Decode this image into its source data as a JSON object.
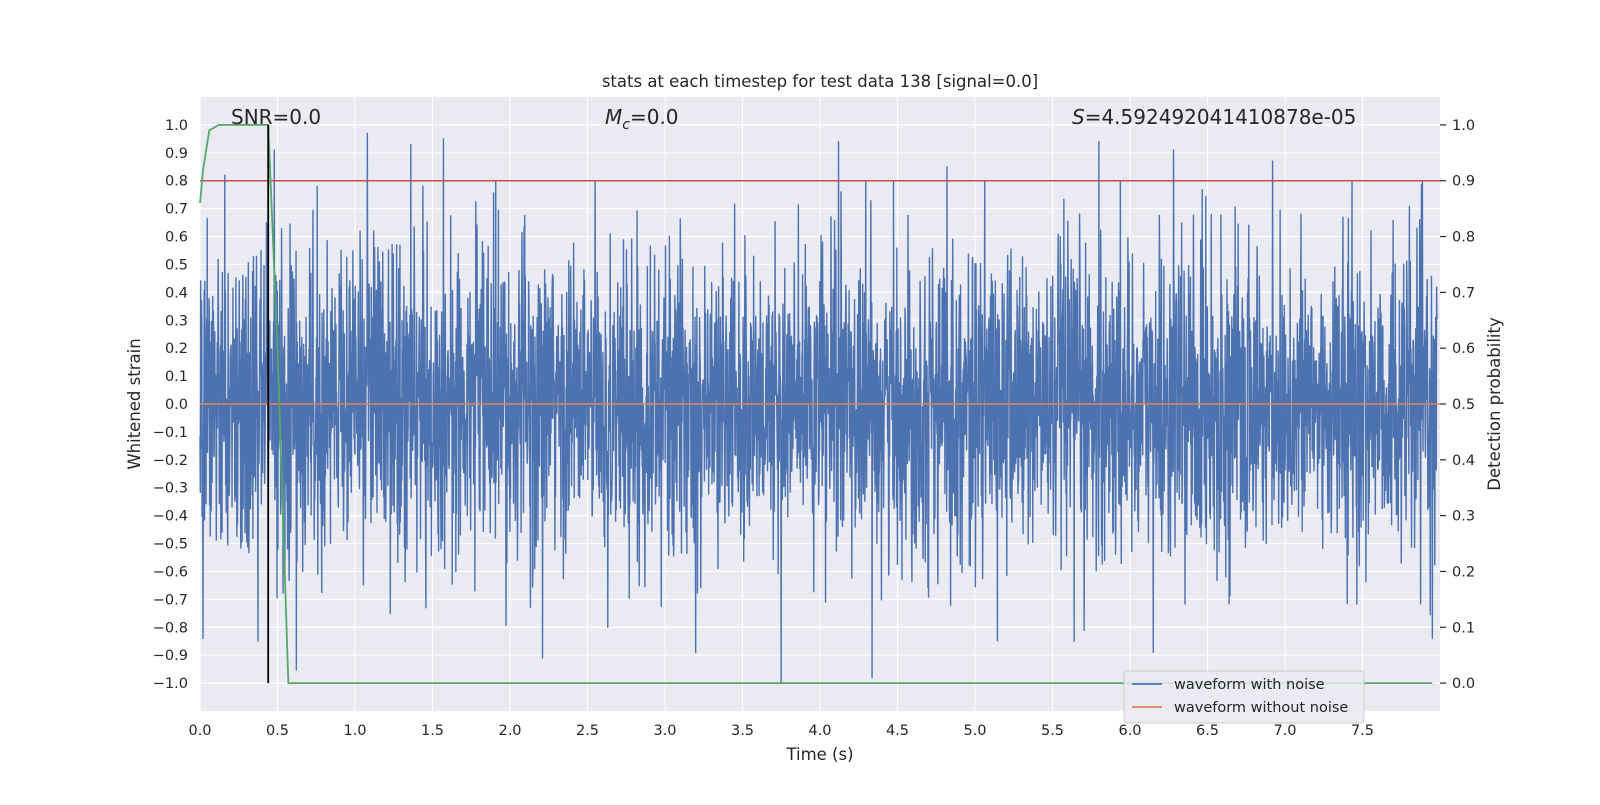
{
  "chart_data": {
    "type": "line",
    "title": "stats at each timestep for test data 138 [signal=0.0]",
    "xlabel": "Time (s)",
    "ylabel_left": "Whitened strain",
    "ylabel_right": "Detection probability",
    "xlim": [
      0.0,
      8.0
    ],
    "ylim_left": [
      -1.1,
      1.1
    ],
    "ylim_right": [
      -0.05,
      1.05
    ],
    "x_ticks": [
      0.0,
      0.5,
      1.0,
      1.5,
      2.0,
      2.5,
      3.0,
      3.5,
      4.0,
      4.5,
      5.0,
      5.5,
      6.0,
      6.5,
      7.0,
      7.5
    ],
    "x_tick_labels": [
      "0.0",
      "0.5",
      "1.0",
      "1.5",
      "2.0",
      "2.5",
      "3.0",
      "3.5",
      "4.0",
      "4.5",
      "5.0",
      "5.5",
      "6.0",
      "6.5",
      "7.0",
      "7.5"
    ],
    "y_left_ticks": [
      1.0,
      0.9,
      0.8,
      0.7,
      0.6,
      0.5,
      0.4,
      0.3,
      0.2,
      0.1,
      0.0,
      -0.1,
      -0.2,
      -0.3,
      -0.4,
      -0.5,
      -0.6,
      -0.7,
      -0.8,
      -0.9,
      -1.0
    ],
    "y_left_tick_labels": [
      "1.0",
      "0.9",
      "0.8",
      "0.7",
      "0.6",
      "0.5",
      "0.4",
      "0.3",
      "0.2",
      "0.1",
      "0.0",
      "−0.1",
      "−0.2",
      "−0.3",
      "−0.4",
      "−0.5",
      "−0.6",
      "−0.7",
      "−0.8",
      "−0.9",
      "−1.0"
    ],
    "y_right_ticks": [
      1.0,
      0.9,
      0.8,
      0.7,
      0.6,
      0.5,
      0.4,
      0.3,
      0.2,
      0.1,
      0.0
    ],
    "y_right_tick_labels": [
      "1.0",
      "0.9",
      "0.8",
      "0.7",
      "0.6",
      "0.5",
      "0.4",
      "0.3",
      "0.2",
      "0.1",
      "0.0"
    ],
    "series": [
      {
        "name": "waveform with noise",
        "color": "#4c72b0",
        "axis": "left",
        "description": "dense whitened noise, mostly within -0.6..0.6 with spikes up to ~0.97 and down to ~-1.0",
        "noise_std": 0.27,
        "spikes": [
          {
            "x": 1.08,
            "y": 0.97
          },
          {
            "x": 1.36,
            "y": 0.93
          },
          {
            "x": 1.57,
            "y": 0.95
          },
          {
            "x": 2.21,
            "y": 0.83
          },
          {
            "x": 4.12,
            "y": 0.94
          },
          {
            "x": 4.82,
            "y": 0.85
          },
          {
            "x": 5.8,
            "y": 0.94
          },
          {
            "x": 6.28,
            "y": 0.91
          },
          {
            "x": 6.92,
            "y": 0.87
          },
          {
            "x": 0.48,
            "y": 0.91
          },
          {
            "x": 0.16,
            "y": 0.82
          },
          {
            "x": 3.75,
            "y": -1.0
          },
          {
            "x": 2.21,
            "y": -0.91
          },
          {
            "x": 6.15,
            "y": -0.89
          },
          {
            "x": 5.64,
            "y": -0.85
          },
          {
            "x": 0.02,
            "y": -0.84
          },
          {
            "x": 7.95,
            "y": -0.84
          },
          {
            "x": 2.63,
            "y": -0.8
          }
        ]
      },
      {
        "name": "waveform without noise",
        "color": "#dd8452",
        "axis": "left",
        "x": [
          0.0,
          8.0
        ],
        "y": [
          0.0,
          0.0
        ]
      },
      {
        "name": "detection probability",
        "color": "#55a868",
        "axis": "right",
        "x": [
          0.0,
          0.02,
          0.06,
          0.12,
          0.44,
          0.5,
          0.57,
          7.95
        ],
        "y": [
          0.86,
          0.92,
          0.99,
          1.0,
          1.0,
          0.6,
          0.0,
          0.0
        ]
      }
    ],
    "threshold_line": {
      "axis": "right",
      "y": 0.9,
      "color": "#c44e52"
    },
    "vertical_marker": {
      "x": 0.44,
      "y_from": -1.0,
      "y_to": 1.0,
      "color": "#000000"
    },
    "annotations": [
      {
        "text": "SNR=0.0"
      },
      {
        "text_prefix": "M",
        "text_sub": "c",
        "text_suffix": "=0.0"
      },
      {
        "text_prefix": "S",
        "text_suffix": "=4.592492041410878e-05"
      }
    ],
    "legend": {
      "location": "lower-right",
      "entries": [
        {
          "label": "waveform with noise",
          "color": "#4c72b0"
        },
        {
          "label": "waveform without noise",
          "color": "#dd8452"
        }
      ]
    }
  }
}
